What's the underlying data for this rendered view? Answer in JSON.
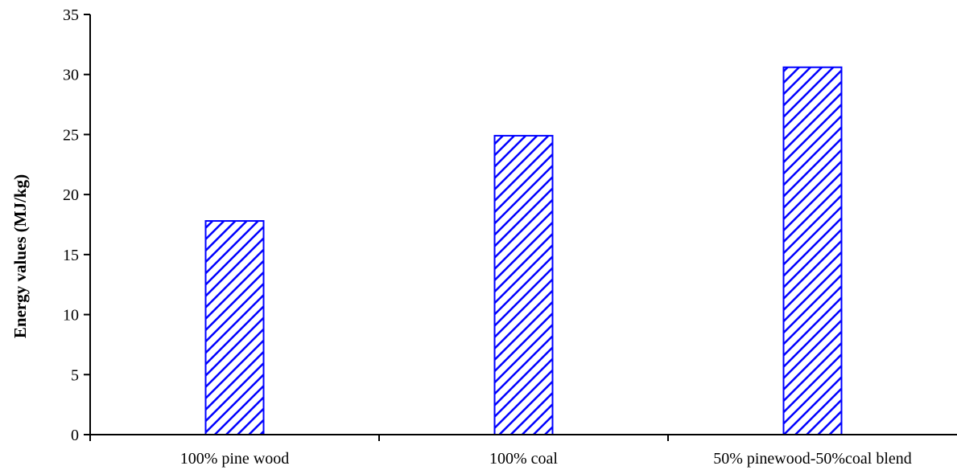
{
  "chart_data": {
    "type": "bar",
    "categories": [
      "100% pine wood",
      "100% coal",
      "50% pinewood-50%coal blend"
    ],
    "values": [
      17.8,
      24.9,
      30.6
    ],
    "title": "",
    "xlabel": "",
    "ylabel": "Energy values (MJ/kg)",
    "ylim": [
      0,
      35
    ],
    "yticks": [
      0,
      5,
      10,
      15,
      20,
      25,
      30,
      35
    ],
    "grid": false,
    "legend": "none",
    "bar_fill": "hatched-diagonal",
    "colors": {
      "bar_stroke": "#0000ff",
      "hatch": "#0000ff",
      "axis": "#000000"
    }
  }
}
